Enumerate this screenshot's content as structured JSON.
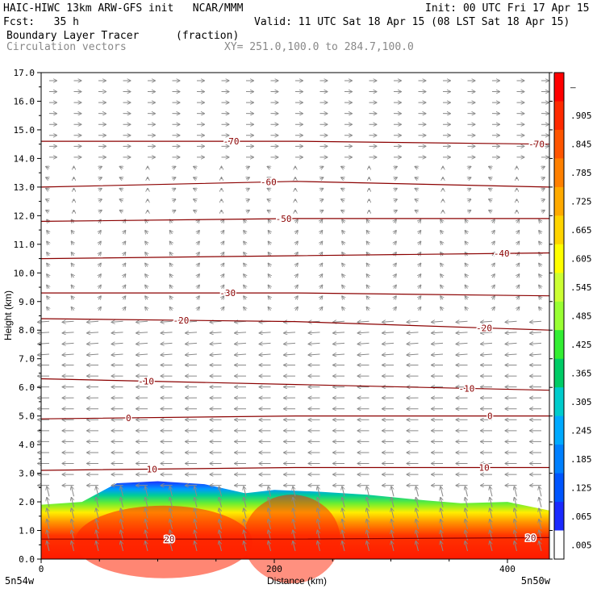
{
  "header": {
    "model_title": "HAIC-HIWC 13km ARW-GFS init   NCAR/MMM",
    "init_time": "Init: 00 UTC Fri 17 Apr 15",
    "fcst": "Fcst:   35 h",
    "valid_time": "Valid: 11 UTC Sat 18 Apr 15 (08 LST Sat 18 Apr 15)",
    "field_name": "Boundary Layer Tracer",
    "field_units": "(fraction)",
    "vector_label": "Circulation vectors",
    "xsec_endpoints": "XY= 251.0,100.0 to 284.7,100.0"
  },
  "chart_data": {
    "type": "cross-section",
    "xlabel": "Distance (km)",
    "ylabel": "Height (km)",
    "xlim": [
      0,
      436
    ],
    "ylim": [
      0,
      17
    ],
    "x_ticks": [
      "0",
      "200",
      "400"
    ],
    "x_end_labels": [
      "5n54w",
      "5n50w"
    ],
    "y_ticks": [
      "0.0",
      "1.0",
      "2.0",
      "3.0",
      "4.0",
      "5.0",
      "6.0",
      "7.0",
      "8.0",
      "9.0",
      "10.0",
      "11.0",
      "12.0",
      "13.0",
      "14.0",
      "15.0",
      "16.0",
      "17.0"
    ],
    "colorbar_labels": [
      "–",
      ".905",
      ".845",
      ".785",
      ".725",
      ".665",
      ".605",
      ".545",
      ".485",
      ".425",
      ".365",
      ".305",
      ".245",
      ".185",
      ".125",
      ".065",
      ".005"
    ],
    "colorbar_colors": [
      "#ff0000",
      "#ff2a00",
      "#ff5500",
      "#ff8000",
      "#ffaa00",
      "#ffd400",
      "#ffff00",
      "#ccff33",
      "#99ff33",
      "#33ee33",
      "#00cc66",
      "#00cccc",
      "#00aaff",
      "#0080ff",
      "#0055ff",
      "#1a2aff",
      "#ffffff"
    ],
    "tracer_profile": [
      {
        "x": 0,
        "top": 1.9
      },
      {
        "x": 35,
        "top": 2.0
      },
      {
        "x": 65,
        "top": 2.65
      },
      {
        "x": 100,
        "top": 2.72
      },
      {
        "x": 140,
        "top": 2.62
      },
      {
        "x": 175,
        "top": 2.3
      },
      {
        "x": 200,
        "top": 2.42
      },
      {
        "x": 240,
        "top": 2.35
      },
      {
        "x": 280,
        "top": 2.25
      },
      {
        "x": 330,
        "top": 2.05
      },
      {
        "x": 360,
        "top": 1.95
      },
      {
        "x": 400,
        "top": 2.0
      },
      {
        "x": 436,
        "top": 1.7
      }
    ],
    "isotherms": [
      {
        "label": "-70",
        "z": [
          14.6,
          14.6,
          14.5
        ],
        "label_x": [
          163,
          425
        ]
      },
      {
        "label": "-60",
        "z": [
          13.0,
          13.2,
          13.0
        ],
        "label_x": [
          195
        ]
      },
      {
        "label": "-50",
        "z": [
          11.8,
          11.9,
          11.9
        ],
        "label_x": [
          208
        ]
      },
      {
        "label": "-40",
        "z": [
          10.5,
          10.6,
          10.7
        ],
        "label_x": [
          395
        ]
      },
      {
        "label": "-30",
        "z": [
          9.3,
          9.3,
          9.2
        ],
        "label_x": [
          160
        ]
      },
      {
        "label": "-20",
        "z": [
          8.4,
          8.3,
          8.0
        ],
        "label_x": [
          120,
          380
        ]
      },
      {
        "label": "-10",
        "z": [
          6.3,
          6.1,
          5.9
        ],
        "label_x": [
          90,
          365
        ]
      },
      {
        "label": "0",
        "z": [
          4.9,
          5.0,
          5.0
        ],
        "label_x": [
          75,
          385
        ]
      },
      {
        "label": "10",
        "z": [
          3.1,
          3.2,
          3.2
        ],
        "label_x": [
          95,
          380
        ]
      },
      {
        "label": "20",
        "z": [
          0.7,
          0.7,
          0.75
        ],
        "label_x": [
          110,
          420
        ]
      }
    ],
    "grid": false,
    "legend": "colorbar-right"
  }
}
